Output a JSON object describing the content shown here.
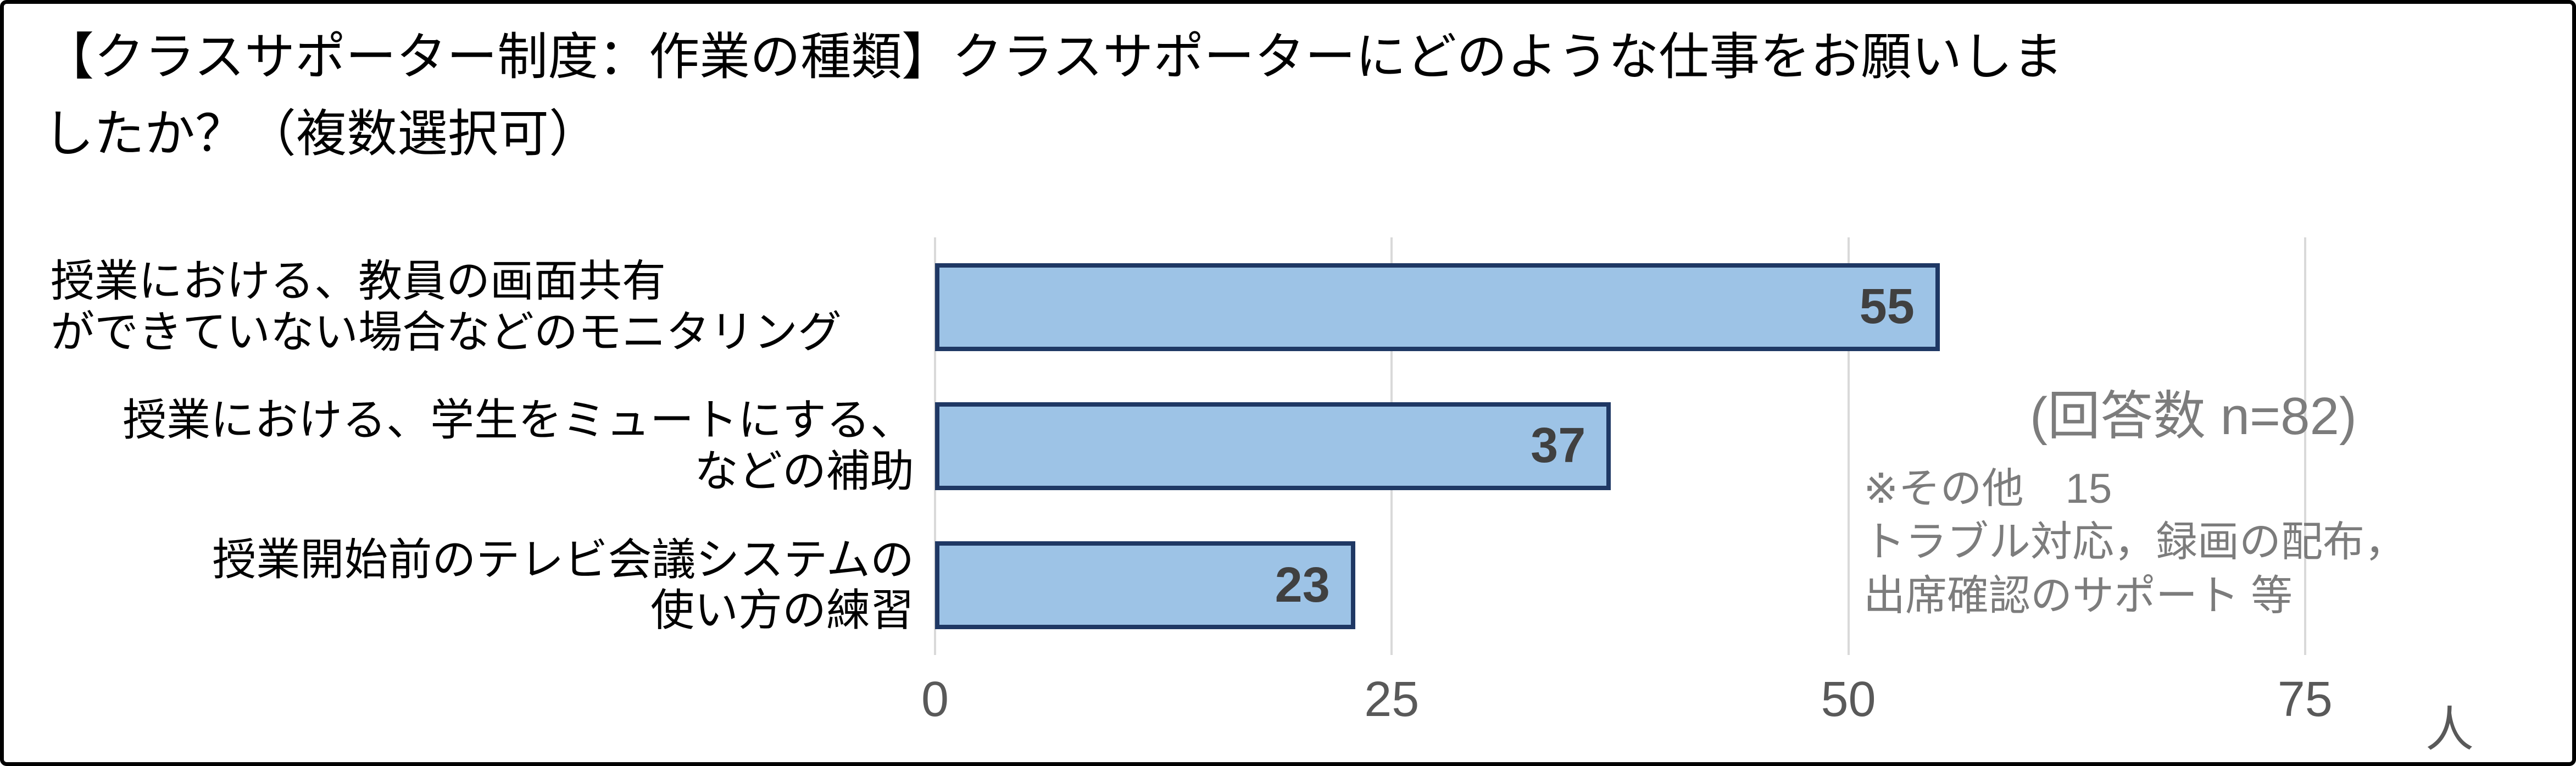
{
  "title": {
    "lines": [
      "【クラスサポーター制度：作業の種類】クラスサポーターにどのような仕事をお願いしま",
      "したか？（複数選択可）"
    ]
  },
  "chart_data": {
    "type": "bar",
    "orientation": "horizontal",
    "title": "【クラスサポーター制度：作業の種類】クラスサポーターにどのような仕事をお願いしましたか？（複数選択可）",
    "categories": [
      {
        "lines": [
          "授業における、教員の画面共有",
          "ができていない場合などのモニタリング"
        ],
        "align": "left"
      },
      {
        "lines": [
          "授業における、学生をミュートにする、",
          "などの補助"
        ],
        "align": "right"
      },
      {
        "lines": [
          "授業開始前のテレビ会議システムの",
          "使い方の練習"
        ],
        "align": "right"
      }
    ],
    "values": [
      55,
      37,
      23
    ],
    "data_labels": [
      55,
      37,
      23
    ],
    "data_label_position": "inside-end",
    "xticks": [
      0,
      25,
      50,
      75
    ],
    "xlim": [
      0,
      80
    ],
    "x_unit": "人",
    "grid": true,
    "legend": false
  },
  "annotations": {
    "response_count": "(回答数 n=82)",
    "other_note_lines": [
      "※その他　15",
      "トラブル対応，録画の配布，",
      "出席確認のサポート 等"
    ]
  },
  "colors": {
    "bar_fill": "#9DC3E6",
    "bar_border": "#1F3864",
    "value_label": "#404040",
    "tick_label": "#595959",
    "grid_line": "#D9D9D9",
    "annotation_gray": "#7C7C7C",
    "title_text": "#000000",
    "frame_border": "#000000"
  }
}
